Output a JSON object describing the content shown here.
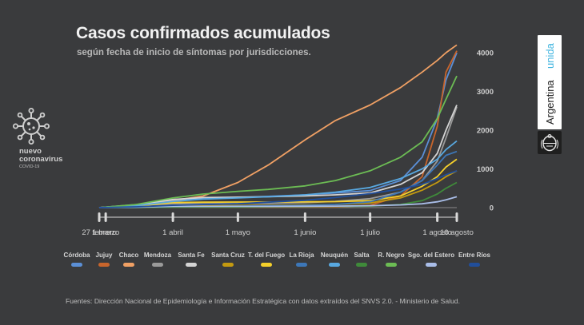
{
  "header": {
    "title": "Casos confirmados acumulados",
    "subtitle": "según fecha de inicio de síntomas por jurisdicciones."
  },
  "brand": {
    "line1": "nuevo",
    "line2": "coronavirus",
    "line3": "COVID-19",
    "logo_word1": "Argentina",
    "logo_word2": "unida",
    "logo_icon": "coat-of-arms-icon",
    "virus_icon": "virus-icon"
  },
  "footer": {
    "sources": "Fuentes: Dirección Nacional de Epidemiología e Información Estratégica con datos extraídos del SNVS 2.0. - Ministerio de Salud."
  },
  "colors": {
    "background": "#3a3b3d",
    "accent": "#44b6e0"
  },
  "chart_data": {
    "type": "line",
    "title": "Casos confirmados acumulados",
    "subtitle": "según fecha de inicio de síntomas por jurisdicciones.",
    "xlabel": "",
    "ylabel": "",
    "x_ticks": [
      "27 febrero",
      "1 marzo",
      "1 abril",
      "1 mayo",
      "1 junio",
      "1 julio",
      "1 agosto",
      "10 agosto"
    ],
    "y_ticks": [
      0,
      1000,
      2000,
      3000,
      4000
    ],
    "y_axis_position": "right",
    "ylim": [
      0,
      4300
    ],
    "grid": false,
    "legend_position": "bottom",
    "x_dates": [
      "2020-02-27",
      "2020-03-15",
      "2020-04-01",
      "2020-04-15",
      "2020-05-01",
      "2020-05-15",
      "2020-06-01",
      "2020-06-15",
      "2020-07-01",
      "2020-07-15",
      "2020-07-25",
      "2020-08-01",
      "2020-08-05",
      "2020-08-10"
    ],
    "series": [
      {
        "name": "Córdoba",
        "color": "#5b8fd6",
        "values": [
          0,
          80,
          180,
          230,
          260,
          290,
          330,
          380,
          440,
          700,
          1300,
          2300,
          3300,
          4000
        ]
      },
      {
        "name": "Jujuy",
        "color": "#c8652c",
        "values": [
          0,
          5,
          10,
          10,
          10,
          10,
          12,
          15,
          60,
          300,
          800,
          2100,
          3500,
          4050
        ]
      },
      {
        "name": "Chaco",
        "color": "#f0a064",
        "values": [
          0,
          50,
          180,
          300,
          650,
          1100,
          1750,
          2250,
          2650,
          3100,
          3500,
          3800,
          4000,
          4200
        ]
      },
      {
        "name": "Mendoza",
        "color": "#9a9a9a",
        "values": [
          0,
          60,
          100,
          100,
          110,
          110,
          130,
          160,
          230,
          400,
          700,
          1200,
          1800,
          2600
        ]
      },
      {
        "name": "Santa Fe",
        "color": "#d4d4d4",
        "values": [
          0,
          70,
          210,
          260,
          270,
          280,
          300,
          330,
          380,
          600,
          900,
          1400,
          2000,
          2650
        ]
      },
      {
        "name": "Santa Cruz",
        "color": "#c49a10",
        "values": [
          0,
          10,
          50,
          50,
          55,
          60,
          70,
          80,
          120,
          250,
          450,
          650,
          800,
          950
        ]
      },
      {
        "name": "T. del Fuego",
        "color": "#f5d02b",
        "values": [
          0,
          40,
          130,
          140,
          145,
          145,
          150,
          155,
          180,
          300,
          550,
          800,
          1050,
          1250
        ]
      },
      {
        "name": "La Rioja",
        "color": "#3d77b8",
        "values": [
          0,
          5,
          20,
          30,
          40,
          50,
          60,
          80,
          150,
          400,
          700,
          1100,
          1350,
          1450
        ]
      },
      {
        "name": "Neuquén",
        "color": "#58a8e0",
        "values": [
          0,
          50,
          160,
          220,
          250,
          280,
          330,
          400,
          520,
          750,
          1000,
          1250,
          1500,
          1720
        ]
      },
      {
        "name": "Salta",
        "color": "#3f8a3a",
        "values": [
          0,
          5,
          10,
          12,
          15,
          20,
          25,
          30,
          40,
          80,
          180,
          350,
          500,
          650
        ]
      },
      {
        "name": "R. Negro",
        "color": "#6cbc54",
        "values": [
          0,
          80,
          250,
          350,
          420,
          470,
          560,
          700,
          950,
          1300,
          1700,
          2300,
          2800,
          3400
        ]
      },
      {
        "name": "Sgo. del Estero",
        "color": "#a9bde8",
        "values": [
          0,
          10,
          30,
          30,
          30,
          30,
          35,
          40,
          50,
          70,
          100,
          150,
          200,
          280
        ]
      },
      {
        "name": "Entre Ríos",
        "color": "#214e9a",
        "values": [
          0,
          20,
          60,
          80,
          100,
          140,
          190,
          260,
          360,
          480,
          600,
          750,
          850,
          950
        ]
      }
    ]
  }
}
